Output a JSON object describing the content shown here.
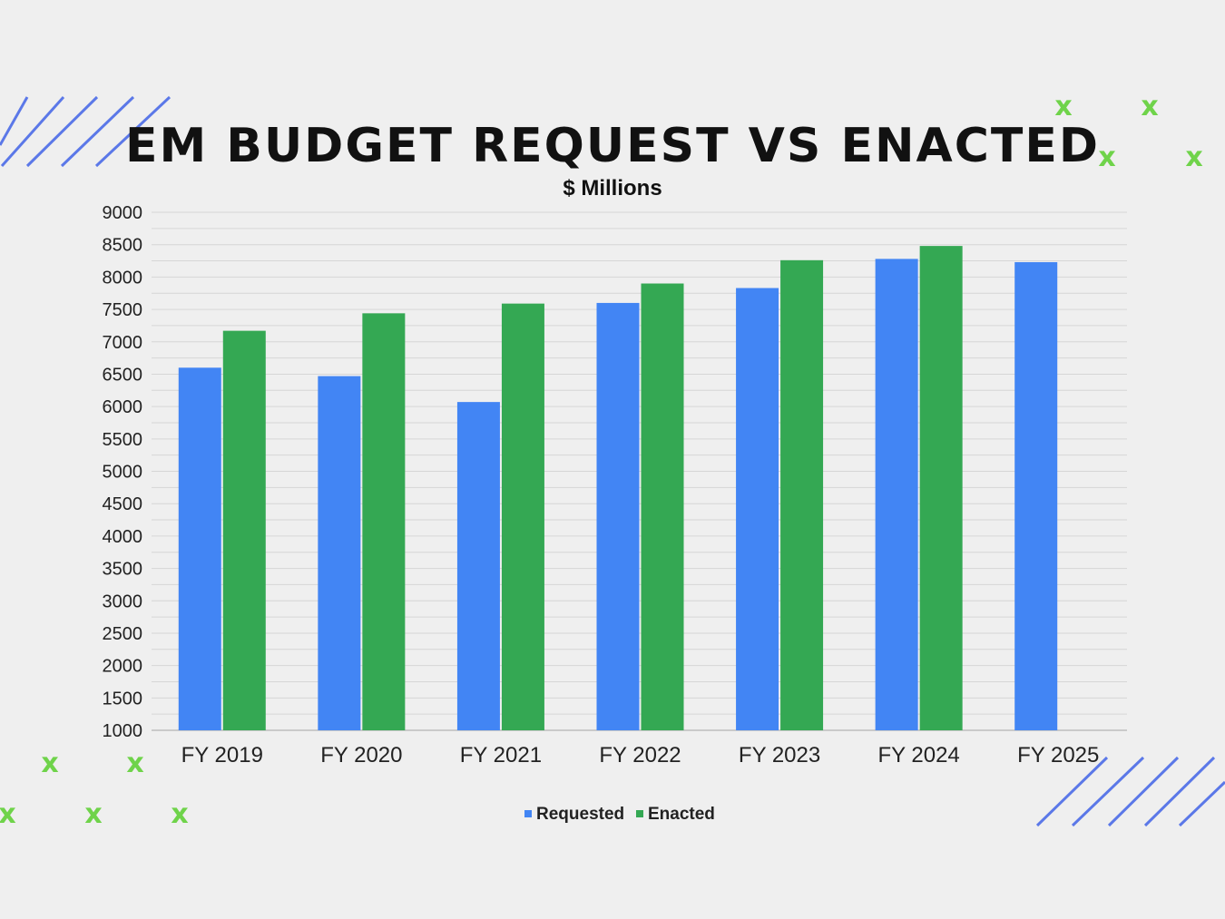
{
  "chart_data": {
    "type": "bar",
    "title": "EM BUDGET REQUEST VS ENACTED",
    "subtitle": "$ Millions",
    "categories": [
      "FY 2019",
      "FY 2020",
      "FY 2021",
      "FY 2022",
      "FY 2023",
      "FY 2024",
      "FY 2025"
    ],
    "series": [
      {
        "name": "Requested",
        "color": "#4285f4",
        "values": [
          6600,
          6470,
          6070,
          7600,
          7830,
          8280,
          8230
        ]
      },
      {
        "name": "Enacted",
        "color": "#34a853",
        "values": [
          7170,
          7440,
          7590,
          7900,
          8260,
          8480,
          null
        ]
      }
    ],
    "ylim": [
      1000,
      9000
    ],
    "yticks": [
      1000,
      1500,
      2000,
      2500,
      3000,
      3500,
      4000,
      4500,
      5000,
      5500,
      6000,
      6500,
      7000,
      7500,
      8000,
      8500,
      9000
    ],
    "grid": true,
    "legend": "bottom-center"
  },
  "decor": {
    "stripe_color": "#5b78e8",
    "mark_color": "#6fd34a",
    "mark_glyph": "x"
  }
}
